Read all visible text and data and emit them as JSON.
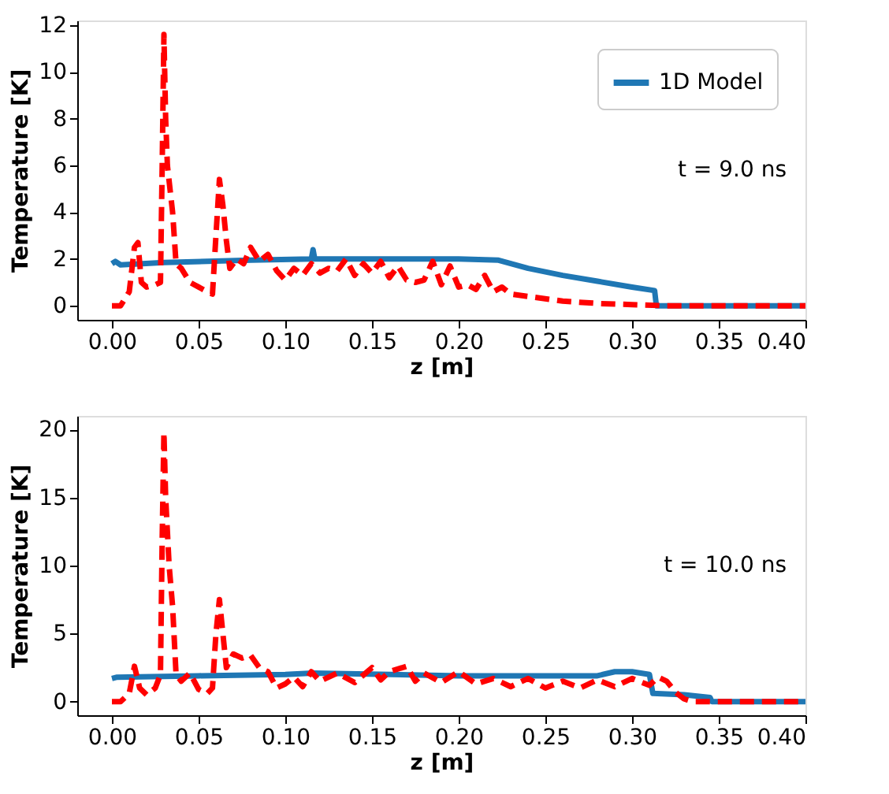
{
  "chart_data": [
    {
      "type": "line",
      "xlabel": "z [m]",
      "ylabel": "Temperature [K]",
      "annotations": [
        "t = 9.0 ns"
      ],
      "xlim": [
        -0.02,
        0.4
      ],
      "xticks": [
        {
          "value": 0,
          "label": "0.00"
        },
        {
          "value": 0.05,
          "label": "0.05"
        },
        {
          "value": 0.1,
          "label": "0.10"
        },
        {
          "value": 0.15,
          "label": "0.15"
        },
        {
          "value": 0.2,
          "label": "0.20"
        },
        {
          "value": 0.25,
          "label": "0.25"
        },
        {
          "value": 0.3,
          "label": "0.30"
        },
        {
          "value": 0.35,
          "label": "0.35"
        },
        {
          "value": 0.4,
          "label": "0.40"
        }
      ],
      "ylim": [
        -0.6,
        12.2
      ],
      "yticks": [
        0,
        2,
        4,
        6,
        8,
        10,
        12
      ],
      "grid": false,
      "legend": "top right",
      "series": [
        {
          "name": "1D Model",
          "color": "#1f77b4",
          "line_style": "solid",
          "x": [
            0,
            0.002,
            0.005,
            0.03,
            0.08,
            0.115,
            0.116,
            0.117,
            0.2,
            0.223,
            0.24,
            0.26,
            0.28,
            0.3,
            0.313,
            0.314,
            0.4
          ],
          "values": [
            1.8,
            1.9,
            1.75,
            1.85,
            1.95,
            2.0,
            2.4,
            2.0,
            2.0,
            1.95,
            1.6,
            1.3,
            1.05,
            0.8,
            0.65,
            0,
            0
          ]
        },
        {
          "color": "#ff0000",
          "line_style": "dashed",
          "x": [
            0,
            0.005,
            0.01,
            0.013,
            0.015,
            0.017,
            0.02,
            0.025,
            0.028,
            0.029,
            0.03,
            0.031,
            0.032,
            0.035,
            0.037,
            0.04,
            0.045,
            0.05,
            0.055,
            0.058,
            0.06,
            0.062,
            0.064,
            0.066,
            0.068,
            0.072,
            0.076,
            0.08,
            0.085,
            0.09,
            0.095,
            0.1,
            0.105,
            0.11,
            0.115,
            0.12,
            0.125,
            0.13,
            0.135,
            0.14,
            0.145,
            0.15,
            0.155,
            0.16,
            0.165,
            0.17,
            0.175,
            0.18,
            0.185,
            0.19,
            0.195,
            0.2,
            0.205,
            0.21,
            0.215,
            0.22,
            0.225,
            0.23,
            0.24,
            0.26,
            0.28,
            0.3,
            0.32,
            0.4
          ],
          "values": [
            0,
            0,
            0.6,
            2.5,
            2.7,
            1.0,
            0.8,
            0.9,
            1.0,
            6,
            11.6,
            8,
            6,
            4,
            1.8,
            1.6,
            1.0,
            0.8,
            0.6,
            0.5,
            3,
            5.4,
            4.3,
            2.8,
            1.6,
            2,
            1.8,
            2.5,
            1.9,
            2.2,
            1.5,
            1.1,
            1.6,
            1.3,
            1.8,
            1.4,
            1.6,
            1.5,
            2.0,
            1.3,
            1.8,
            1.4,
            1.9,
            1.2,
            1.7,
            1.1,
            1.0,
            1.1,
            1.9,
            0.9,
            1.7,
            0.8,
            0.9,
            0.7,
            1.3,
            0.6,
            0.8,
            0.5,
            0.4,
            0.2,
            0.1,
            0.05,
            0,
            0
          ]
        }
      ]
    },
    {
      "type": "line",
      "xlabel": "z [m]",
      "ylabel": "Temperature [K]",
      "annotations": [
        "t = 10.0 ns"
      ],
      "xlim": [
        -0.02,
        0.4
      ],
      "xticks": [
        {
          "value": 0,
          "label": "0.00"
        },
        {
          "value": 0.05,
          "label": "0.05"
        },
        {
          "value": 0.1,
          "label": "0.10"
        },
        {
          "value": 0.15,
          "label": "0.15"
        },
        {
          "value": 0.2,
          "label": "0.20"
        },
        {
          "value": 0.25,
          "label": "0.25"
        },
        {
          "value": 0.3,
          "label": "0.30"
        },
        {
          "value": 0.35,
          "label": "0.35"
        },
        {
          "value": 0.4,
          "label": "0.40"
        }
      ],
      "ylim": [
        -1,
        21
      ],
      "yticks": [
        0,
        5,
        10,
        15,
        20
      ],
      "grid": false,
      "legend": "top right",
      "series": [
        {
          "name": "1D Model",
          "color": "#1f77b4",
          "line_style": "solid",
          "x": [
            0,
            0.003,
            0.05,
            0.1,
            0.116,
            0.2,
            0.28,
            0.29,
            0.3,
            0.31,
            0.312,
            0.33,
            0.345,
            0.346,
            0.4
          ],
          "values": [
            1.7,
            1.8,
            1.9,
            2.0,
            2.1,
            1.9,
            1.9,
            2.2,
            2.2,
            2.0,
            0.6,
            0.5,
            0.3,
            0,
            0
          ]
        },
        {
          "color": "#ff0000",
          "line_style": "dashed",
          "x": [
            0,
            0.005,
            0.01,
            0.013,
            0.016,
            0.02,
            0.025,
            0.028,
            0.029,
            0.03,
            0.031,
            0.033,
            0.035,
            0.037,
            0.04,
            0.045,
            0.05,
            0.055,
            0.058,
            0.06,
            0.062,
            0.064,
            0.066,
            0.07,
            0.075,
            0.08,
            0.085,
            0.09,
            0.095,
            0.1,
            0.105,
            0.11,
            0.115,
            0.12,
            0.13,
            0.14,
            0.15,
            0.155,
            0.16,
            0.17,
            0.175,
            0.18,
            0.19,
            0.2,
            0.21,
            0.22,
            0.23,
            0.24,
            0.25,
            0.26,
            0.27,
            0.28,
            0.29,
            0.3,
            0.31,
            0.315,
            0.32,
            0.325,
            0.33,
            0.335,
            0.4
          ],
          "values": [
            0,
            0,
            0.6,
            2.6,
            1.0,
            0.5,
            1.0,
            2,
            12,
            19.8,
            15,
            10,
            7,
            2,
            1.5,
            2.1,
            0.9,
            0.6,
            1.0,
            5,
            7.5,
            5,
            2.5,
            3.5,
            3.2,
            3.4,
            2.5,
            2.2,
            1.0,
            1.3,
            1.8,
            1.1,
            2.2,
            1.5,
            2.1,
            1.4,
            2.5,
            1.6,
            2.2,
            2.6,
            1.5,
            2.1,
            1.4,
            2.2,
            1.3,
            1.7,
            1.1,
            1.7,
            1.0,
            1.5,
            1.0,
            1.6,
            1.1,
            1.7,
            1.2,
            1.8,
            1.5,
            0.7,
            0.2,
            0,
            0
          ]
        }
      ]
    }
  ]
}
